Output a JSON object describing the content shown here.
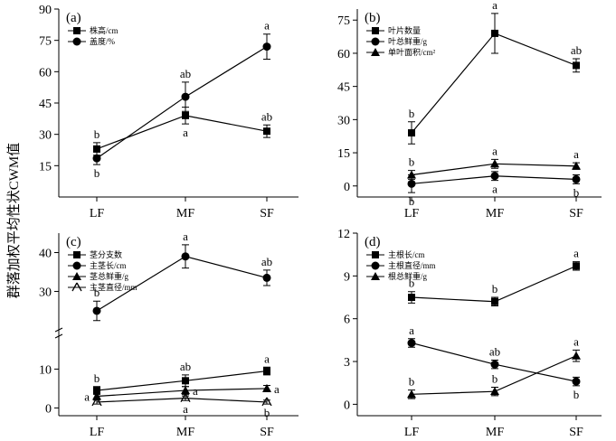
{
  "ylabel_shared": "群落加权平均性状CWM值",
  "chart_data": [
    {
      "type": "line",
      "panel_label": "(a)",
      "categories": [
        "LF",
        "MF",
        "SF"
      ],
      "ylim": [
        0,
        90
      ],
      "yticks": [
        15,
        30,
        45,
        60,
        75,
        90
      ],
      "series": [
        {
          "name": "株高/cm",
          "marker": "square",
          "values": [
            23,
            39,
            31.5
          ],
          "errors": [
            3,
            4,
            3
          ],
          "sig": [
            "b",
            "a",
            "ab"
          ],
          "sig_pos": [
            "above",
            "below",
            "above"
          ]
        },
        {
          "name": "盖度/%",
          "marker": "circle",
          "values": [
            18.5,
            48,
            72
          ],
          "errors": [
            3,
            7,
            6
          ],
          "sig": [
            "b",
            "ab",
            "a"
          ],
          "sig_pos": [
            "below",
            "above",
            "above"
          ]
        }
      ]
    },
    {
      "type": "line",
      "panel_label": "(b)",
      "categories": [
        "LF",
        "MF",
        "SF"
      ],
      "ylim": [
        -5,
        80
      ],
      "yticks": [
        0,
        15,
        30,
        45,
        60,
        75
      ],
      "series": [
        {
          "name": "叶片数量",
          "marker": "square",
          "values": [
            24,
            69,
            54.5
          ],
          "errors": [
            5,
            9,
            3
          ],
          "sig": [
            "b",
            "a",
            "ab"
          ],
          "sig_pos": [
            "above",
            "above",
            "above"
          ]
        },
        {
          "name": "叶总鲜重/g",
          "marker": "circle",
          "values": [
            1,
            4.5,
            3
          ],
          "errors": [
            4,
            2,
            2
          ],
          "sig": [
            "b",
            "a",
            "b"
          ],
          "sig_pos": [
            "below",
            "below",
            "below"
          ]
        },
        {
          "name": "单叶面积/cm²",
          "marker": "triangle",
          "values": [
            5,
            10,
            9
          ],
          "errors": [
            2,
            2,
            1.5
          ],
          "sig": [
            "b",
            "a",
            "a"
          ],
          "sig_pos": [
            "above",
            "above",
            "above"
          ]
        }
      ]
    },
    {
      "type": "line",
      "panel_label": "(c)",
      "categories": [
        "LF",
        "MF",
        "SF"
      ],
      "ylim": [
        -2,
        45
      ],
      "yticks": [
        0,
        10,
        30,
        40
      ],
      "axis_break": true,
      "series": [
        {
          "name": "茎分支数",
          "marker": "square",
          "values": [
            4.5,
            7,
            9.5
          ],
          "errors": [
            1,
            1.5,
            1
          ],
          "sig": [
            "b",
            "ab",
            "a"
          ],
          "sig_pos": [
            "above",
            "above",
            "above"
          ]
        },
        {
          "name": "主茎长/cm",
          "marker": "circle",
          "values": [
            25,
            39,
            33.5
          ],
          "errors": [
            2.5,
            3,
            2
          ],
          "sig": [
            "b",
            "a",
            "ab"
          ],
          "sig_pos": [
            "above",
            "above",
            "above"
          ]
        },
        {
          "name": "茎总鲜重/g",
          "marker": "triangle",
          "values": [
            3,
            4.5,
            5
          ],
          "errors": [
            0.8,
            1,
            0.8
          ],
          "sig": [
            "a",
            "a",
            "a"
          ],
          "sig_pos": [
            "left",
            "right",
            "right"
          ]
        },
        {
          "name": "主茎直径/mm",
          "marker": "tri-line",
          "values": [
            1.5,
            2.5,
            1.5
          ],
          "errors": [
            0.5,
            0.6,
            0.5
          ],
          "sig": [
            "b",
            "a",
            "b"
          ],
          "sig_pos": [
            "above",
            "below",
            "below"
          ]
        }
      ]
    },
    {
      "type": "line",
      "panel_label": "(d)",
      "categories": [
        "LF",
        "MF",
        "SF"
      ],
      "ylim": [
        -0.8,
        12
      ],
      "yticks": [
        0,
        3,
        6,
        9,
        12
      ],
      "series": [
        {
          "name": "主根长/cm",
          "marker": "square",
          "values": [
            7.5,
            7.2,
            9.7
          ],
          "errors": [
            0.4,
            0.3,
            0.3
          ],
          "sig": [
            "b",
            "b",
            "a"
          ],
          "sig_pos": [
            "above",
            "above",
            "above"
          ]
        },
        {
          "name": "主根直径/mm",
          "marker": "circle",
          "values": [
            4.3,
            2.8,
            1.6
          ],
          "errors": [
            0.3,
            0.3,
            0.3
          ],
          "sig": [
            "a",
            "ab",
            "b"
          ],
          "sig_pos": [
            "above",
            "above",
            "below"
          ]
        },
        {
          "name": "根总鲜重/g",
          "marker": "triangle",
          "values": [
            0.7,
            0.9,
            3.4
          ],
          "errors": [
            0.3,
            0.3,
            0.4
          ],
          "sig": [
            "b",
            "b",
            "a"
          ],
          "sig_pos": [
            "above",
            "above",
            "above"
          ]
        }
      ]
    }
  ]
}
